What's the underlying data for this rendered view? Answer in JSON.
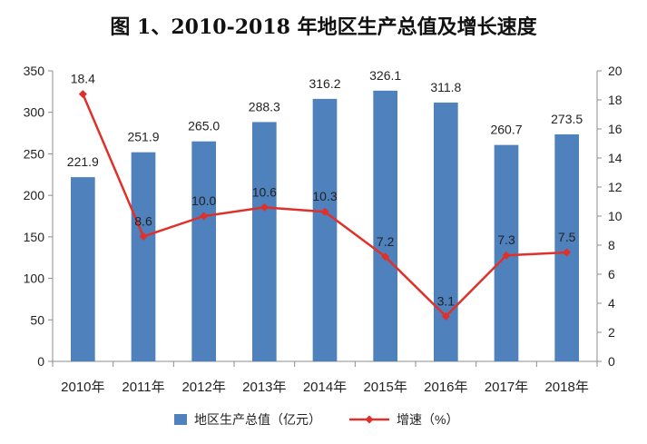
{
  "chart_data": {
    "type": "bar+line",
    "title": "图 1、2010-2018 年地区生产总值及增长速度",
    "categories": [
      "2010年",
      "2011年",
      "2012年",
      "2013年",
      "2014年",
      "2015年",
      "2016年",
      "2017年",
      "2018年"
    ],
    "series": [
      {
        "name": "地区生产总值（亿元）",
        "type": "bar",
        "axis": "left",
        "color": "#4f81bd",
        "values": [
          221.9,
          251.9,
          265.0,
          288.3,
          316.2,
          326.1,
          311.8,
          260.7,
          273.5
        ],
        "labels": [
          "221.9",
          "251.9",
          "265.0",
          "288.3",
          "316.2",
          "326.1",
          "311.8",
          "260.7",
          "273.5"
        ]
      },
      {
        "name": "增速（%）",
        "type": "line",
        "axis": "right",
        "color": "#e0302a",
        "values": [
          18.4,
          8.6,
          10.0,
          10.6,
          10.3,
          7.2,
          3.1,
          7.3,
          7.5
        ],
        "labels": [
          "18.4",
          "8.6",
          "10.0",
          "10.6",
          "10.3",
          "7.2",
          "3.1",
          "7.3",
          "7.5"
        ]
      }
    ],
    "y_left": {
      "min": 0,
      "max": 350,
      "ticks": [
        "0",
        "50",
        "100",
        "150",
        "200",
        "250",
        "300",
        "350"
      ]
    },
    "y_right": {
      "min": 0,
      "max": 20,
      "ticks": [
        "0",
        "2",
        "4",
        "6",
        "8",
        "10",
        "12",
        "14",
        "16",
        "18",
        "20"
      ]
    },
    "grid": false,
    "legend_position": "bottom"
  }
}
